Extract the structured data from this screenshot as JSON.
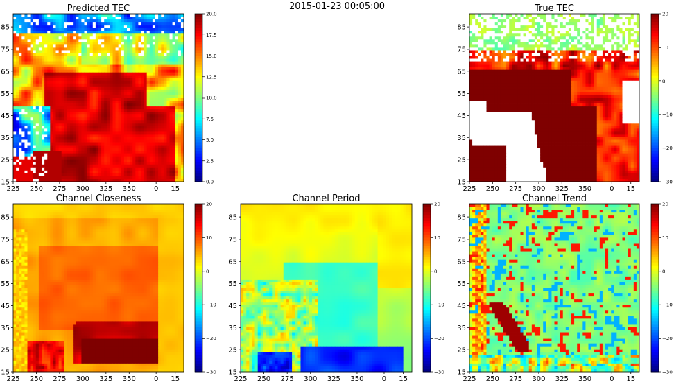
{
  "figure": {
    "suptitle": "2015-01-23 00:05:00"
  },
  "colors": {
    "jet_stops": [
      "#00007f",
      "#0000ff",
      "#007fff",
      "#00ffff",
      "#7fff7f",
      "#ffff00",
      "#ff7f00",
      "#ff0000",
      "#7f0000"
    ],
    "missing": "#ffffff"
  },
  "chart_data": [
    {
      "type": "heatmap",
      "id": "predicted",
      "title": "Predicted TEC",
      "x_tick_labels": [
        "225",
        "250",
        "275",
        "300",
        "325",
        "350",
        "0",
        "15"
      ],
      "y_tick_labels": [
        "15",
        "25",
        "35",
        "45",
        "55",
        "65",
        "75",
        "85"
      ],
      "colorbar": {
        "min": 0,
        "max": 20,
        "ticks": [
          "0.0",
          "2.5",
          "5.0",
          "7.5",
          "10.0",
          "12.5",
          "15.0",
          "17.5",
          "20.0"
        ]
      },
      "description_field": "approx. values: high (~20) over central/southern land region, moderate (8–15) band to north, low (0–5) at top and left margins with scattered missing cells",
      "value_range": [
        0,
        20
      ],
      "has_missing": true
    },
    {
      "type": "heatmap",
      "id": "true",
      "title": "True TEC",
      "x_tick_labels": [
        "225",
        "250",
        "275",
        "300",
        "325",
        "350",
        "0",
        "15"
      ],
      "y_tick_labels": [
        "15",
        "25",
        "35",
        "45",
        "55",
        "65",
        "75",
        "85"
      ],
      "colorbar": {
        "min": -30,
        "max": 20,
        "ticks": [
          "20",
          "10",
          "0",
          "−10",
          "−20",
          "−30"
        ]
      },
      "value_range": [
        -30,
        20
      ],
      "has_missing": true
    },
    {
      "type": "heatmap",
      "id": "closeness",
      "title": "Channel Closeness",
      "x_tick_labels": [
        "225",
        "250",
        "275",
        "300",
        "325",
        "350",
        "0",
        "15"
      ],
      "y_tick_labels": [
        "15",
        "25",
        "35",
        "45",
        "55",
        "65",
        "75",
        "85"
      ],
      "colorbar": {
        "min": -30,
        "max": 20,
        "ticks": [
          "20",
          "10",
          "0",
          "−10",
          "−20",
          "−30"
        ]
      },
      "value_range": [
        -30,
        20
      ],
      "has_missing": false
    },
    {
      "type": "heatmap",
      "id": "period",
      "title": "Channel Period",
      "x_tick_labels": [
        "225",
        "250",
        "275",
        "300",
        "325",
        "350",
        "0",
        "15"
      ],
      "y_tick_labels": [
        "15",
        "25",
        "35",
        "45",
        "55",
        "65",
        "75",
        "85"
      ],
      "colorbar": {
        "min": -30,
        "max": 20,
        "ticks": [
          "20",
          "10",
          "0",
          "−10",
          "−20",
          "−30"
        ]
      },
      "value_range": [
        -30,
        20
      ],
      "has_missing": false
    },
    {
      "type": "heatmap",
      "id": "trend",
      "title": "Channel Trend",
      "x_tick_labels": [
        "225",
        "250",
        "275",
        "300",
        "325",
        "350",
        "0",
        "15"
      ],
      "y_tick_labels": [
        "15",
        "25",
        "35",
        "45",
        "55",
        "65",
        "75",
        "85"
      ],
      "colorbar": {
        "min": -30,
        "max": 20,
        "ticks": [
          "20",
          "10",
          "0",
          "−10",
          "−20",
          "−30"
        ]
      },
      "value_range": [
        -30,
        20
      ],
      "has_missing": false
    }
  ]
}
